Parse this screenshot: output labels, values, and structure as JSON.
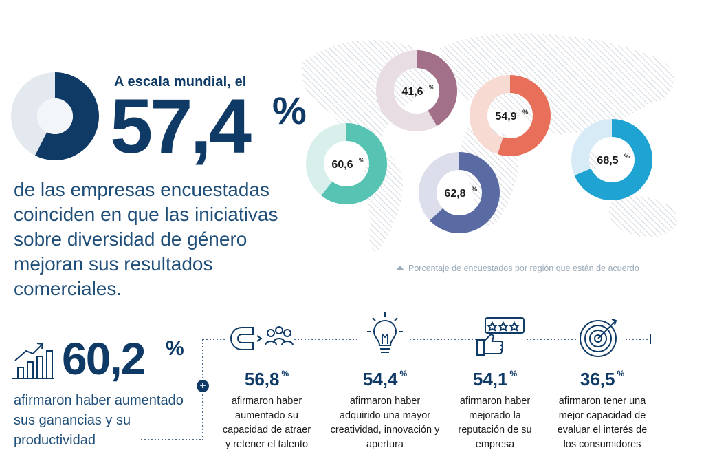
{
  "headline": {
    "intro": "A escala mundial, el",
    "value": "57,4",
    "unit": "%",
    "fraction": 0.574,
    "description": "de las empresas encuestadas coinciden en que las iniciativas sobre diversidad de género mejoran sus resultados comerciales."
  },
  "regions": {
    "note": "Porcentaje de encuestados por región que están de acuerdo",
    "donuts": [
      {
        "label": "41,6",
        "unit": "%",
        "value": 41.6,
        "color": "#a27089",
        "track": "#e8dde2"
      },
      {
        "label": "54,9",
        "unit": "%",
        "value": 54.9,
        "color": "#e8705a",
        "track": "#f7dad2"
      },
      {
        "label": "60,6",
        "unit": "%",
        "value": 60.6,
        "color": "#56c3b3",
        "track": "#d8efeb"
      },
      {
        "label": "62,8",
        "unit": "%",
        "value": 62.8,
        "color": "#5a6ba3",
        "track": "#dcdfeb"
      },
      {
        "label": "68,5",
        "unit": "%",
        "value": 68.5,
        "color": "#1fa3d2",
        "track": "#d6ebf6"
      }
    ]
  },
  "bottom": {
    "main": {
      "value": "60,2",
      "unit": "%",
      "description": "afirmaron haber aumentado sus ganancias y su productividad"
    },
    "stats": [
      {
        "icon": "magnet-people-icon",
        "value": "56,8",
        "unit": "%",
        "text": "afirmaron haber aumentado su capacidad de atraer y retener el talento"
      },
      {
        "icon": "lightbulb-icon",
        "value": "54,4",
        "unit": "%",
        "text": "afirmaron haber adquirido una mayor creatividad, innovación y apertura"
      },
      {
        "icon": "thumbs-up-rating-icon",
        "value": "54,1",
        "unit": "%",
        "text": "afirmaron haber mejorado la reputación de su empresa"
      },
      {
        "icon": "target-icon",
        "value": "36,5",
        "unit": "%",
        "text": "afirmaron tener una mejor capacidad de evaluar el interés de los consumidores"
      }
    ]
  },
  "colors": {
    "navy": "#0f3a66",
    "pale": "#e3e9ef"
  }
}
